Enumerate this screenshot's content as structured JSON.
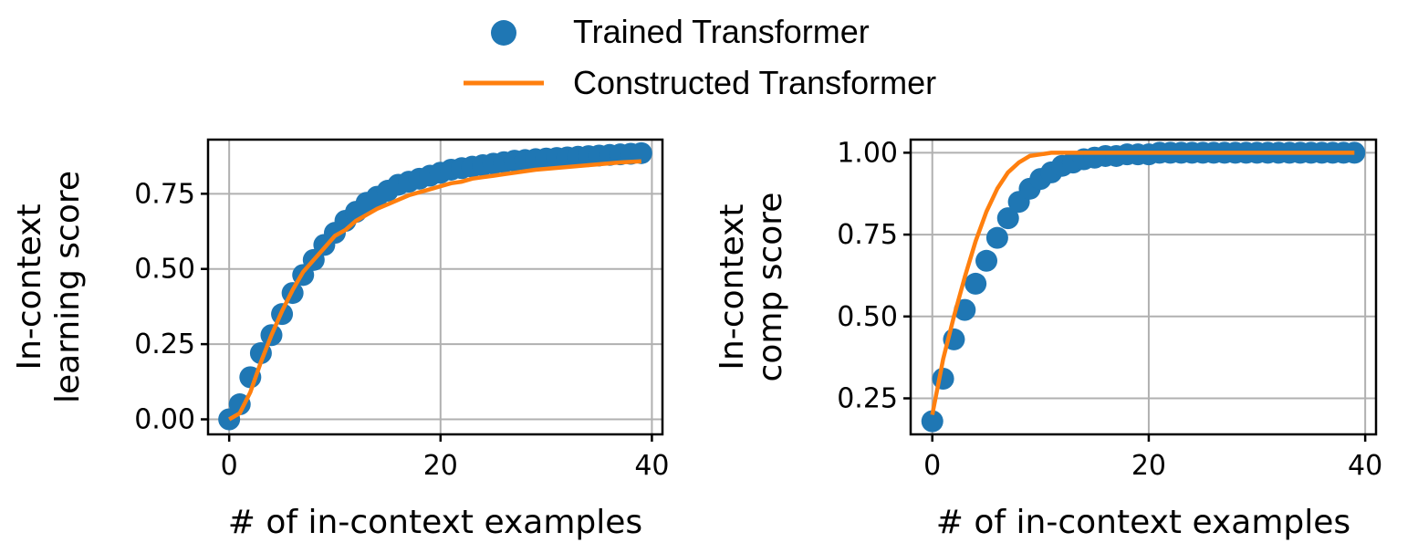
{
  "colors": {
    "trained": "#1f77b4",
    "constructed": "#ff7f0e",
    "grid": "#b0b0b0",
    "axes": "#000000"
  },
  "legend": {
    "placement": "top-center",
    "items": [
      {
        "label": "Trained Transformer",
        "marker": "circle"
      },
      {
        "label": "Constructed Transformer",
        "marker": "line"
      }
    ]
  },
  "chart_data": [
    {
      "type": "scatter",
      "xlabel": "# of in-context examples",
      "ylabel_lines": [
        "In-context",
        "learning score"
      ],
      "xlim": [
        -2,
        41
      ],
      "ylim": [
        -0.05,
        0.93
      ],
      "xticks": [
        0,
        20,
        40
      ],
      "xtick_labels": [
        "0",
        "20",
        "40"
      ],
      "yticks": [
        0.0,
        0.25,
        0.5,
        0.75
      ],
      "ytick_labels": [
        "0.00",
        "0.25",
        "0.50",
        "0.75"
      ],
      "grid": true,
      "series": [
        {
          "name": "Trained Transformer",
          "kind": "scatter",
          "x": [
            0,
            1,
            2,
            3,
            4,
            5,
            6,
            7,
            8,
            9,
            10,
            11,
            12,
            13,
            14,
            15,
            16,
            17,
            18,
            19,
            20,
            21,
            22,
            23,
            24,
            25,
            26,
            27,
            28,
            29,
            30,
            31,
            32,
            33,
            34,
            35,
            36,
            37,
            38,
            39
          ],
          "y": [
            0.0,
            0.05,
            0.14,
            0.22,
            0.28,
            0.35,
            0.42,
            0.48,
            0.53,
            0.58,
            0.62,
            0.66,
            0.69,
            0.72,
            0.74,
            0.76,
            0.78,
            0.79,
            0.8,
            0.81,
            0.82,
            0.83,
            0.835,
            0.84,
            0.845,
            0.85,
            0.855,
            0.86,
            0.862,
            0.865,
            0.867,
            0.869,
            0.871,
            0.873,
            0.875,
            0.877,
            0.879,
            0.881,
            0.883,
            0.885
          ]
        },
        {
          "name": "Constructed Transformer",
          "kind": "line",
          "x": [
            0,
            1,
            2,
            3,
            4,
            5,
            6,
            7,
            8,
            9,
            10,
            11,
            12,
            13,
            14,
            15,
            16,
            17,
            18,
            19,
            20,
            21,
            22,
            23,
            24,
            25,
            26,
            27,
            28,
            29,
            30,
            31,
            32,
            33,
            34,
            35,
            36,
            37,
            38,
            39
          ],
          "y": [
            0.0,
            0.02,
            0.09,
            0.19,
            0.28,
            0.36,
            0.43,
            0.49,
            0.53,
            0.57,
            0.61,
            0.63,
            0.66,
            0.68,
            0.7,
            0.715,
            0.73,
            0.745,
            0.755,
            0.765,
            0.775,
            0.785,
            0.79,
            0.8,
            0.805,
            0.81,
            0.815,
            0.82,
            0.825,
            0.83,
            0.833,
            0.836,
            0.839,
            0.842,
            0.845,
            0.848,
            0.851,
            0.854,
            0.856,
            0.858
          ]
        }
      ]
    },
    {
      "type": "scatter",
      "xlabel": "# of in-context examples",
      "ylabel_lines": [
        "In-context",
        "comp score"
      ],
      "xlim": [
        -2,
        41
      ],
      "ylim": [
        0.14,
        1.04
      ],
      "xticks": [
        0,
        20,
        40
      ],
      "xtick_labels": [
        "0",
        "20",
        "40"
      ],
      "yticks": [
        0.25,
        0.5,
        0.75,
        1.0
      ],
      "ytick_labels": [
        "0.25",
        "0.50",
        "0.75",
        "1.00"
      ],
      "grid": true,
      "series": [
        {
          "name": "Trained Transformer",
          "kind": "scatter",
          "x": [
            0,
            1,
            2,
            3,
            4,
            5,
            6,
            7,
            8,
            9,
            10,
            11,
            12,
            13,
            14,
            15,
            16,
            17,
            18,
            19,
            20,
            21,
            22,
            23,
            24,
            25,
            26,
            27,
            28,
            29,
            30,
            31,
            32,
            33,
            34,
            35,
            36,
            37,
            38,
            39
          ],
          "y": [
            0.18,
            0.31,
            0.43,
            0.52,
            0.6,
            0.67,
            0.74,
            0.8,
            0.85,
            0.89,
            0.92,
            0.94,
            0.96,
            0.97,
            0.98,
            0.985,
            0.99,
            0.99,
            0.995,
            0.995,
            0.995,
            1.0,
            1.0,
            1.0,
            1.0,
            1.0,
            1.0,
            1.0,
            1.0,
            1.0,
            1.0,
            1.0,
            1.0,
            1.0,
            1.0,
            1.0,
            1.0,
            1.0,
            1.0,
            1.0
          ]
        },
        {
          "name": "Constructed Transformer",
          "kind": "line",
          "x": [
            0,
            1,
            2,
            3,
            4,
            5,
            6,
            7,
            8,
            9,
            10,
            11,
            12,
            13,
            14,
            15,
            16,
            17,
            18,
            19,
            20,
            21,
            22,
            23,
            24,
            25,
            26,
            27,
            28,
            29,
            30,
            31,
            32,
            33,
            34,
            35,
            36,
            37,
            38,
            39
          ],
          "y": [
            0.2,
            0.37,
            0.5,
            0.62,
            0.73,
            0.82,
            0.89,
            0.94,
            0.97,
            0.99,
            0.995,
            1.0,
            1.0,
            1.0,
            1.0,
            1.0,
            1.0,
            1.0,
            1.0,
            1.0,
            1.0,
            1.0,
            1.0,
            1.0,
            1.0,
            1.0,
            1.0,
            1.0,
            1.0,
            1.0,
            1.0,
            1.0,
            1.0,
            1.0,
            1.0,
            1.0,
            1.0,
            1.0,
            1.0,
            1.0
          ]
        }
      ]
    }
  ]
}
